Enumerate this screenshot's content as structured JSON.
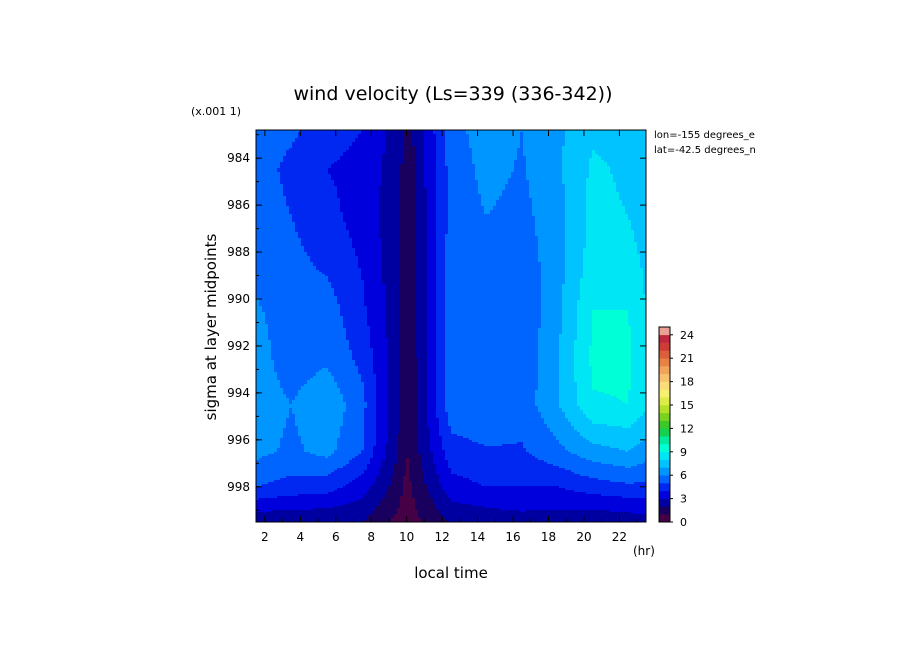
{
  "chart_data": {
    "type": "heatmap",
    "title": "wind velocity (Ls=339 (336-342))",
    "xlabel": "local time",
    "x_unit": "(hr)",
    "ylabel": "sigma at layer midpoints",
    "y_scale_note": "(x.001 1)",
    "annotations": [
      "lon=-155 degrees_e",
      "lat=-42.5 degrees_n"
    ],
    "x_ticks": [
      "2",
      "4",
      "6",
      "8",
      "10",
      "12",
      "14",
      "16",
      "18",
      "20",
      "22"
    ],
    "y_ticks": [
      "984",
      "986",
      "988",
      "990",
      "992",
      "994",
      "996",
      "998"
    ],
    "xlim": [
      1.5,
      23.5
    ],
    "ylim": [
      982.8,
      999.5
    ],
    "colorbar": {
      "ticks": [
        "0",
        "3",
        "6",
        "9",
        "12",
        "15",
        "18",
        "21",
        "24"
      ],
      "range": [
        0,
        25
      ],
      "step": 1
    },
    "x": [
      1.5,
      3.5,
      5.5,
      7.5,
      9.5,
      10.0,
      10.5,
      12.5,
      14.5,
      16.5,
      18.5,
      20.5,
      22.5,
      23.5
    ],
    "y": [
      982.8,
      984.5,
      986.5,
      988.5,
      990.5,
      992.5,
      994.5,
      996.5,
      998.0,
      998.8,
      999.5
    ],
    "values": [
      [
        5.5,
        5.2,
        4.4,
        4.0,
        2.5,
        1.5,
        2.2,
        5.6,
        6.5,
        6.0,
        6.8,
        7.8,
        7.6,
        7.2
      ],
      [
        5.5,
        4.7,
        4.0,
        3.7,
        2.4,
        1.4,
        2.1,
        5.4,
        6.3,
        5.9,
        6.8,
        8.2,
        7.8,
        7.3
      ],
      [
        5.6,
        5.0,
        4.3,
        3.6,
        2.3,
        1.3,
        2.0,
        5.4,
        6.0,
        5.7,
        6.6,
        8.3,
        8.0,
        7.4
      ],
      [
        5.8,
        5.3,
        4.8,
        3.9,
        2.3,
        1.3,
        2.0,
        5.5,
        6.0,
        5.4,
        6.6,
        8.5,
        8.5,
        7.8
      ],
      [
        6.1,
        5.6,
        5.5,
        4.2,
        2.3,
        1.3,
        2.0,
        5.5,
        6.0,
        5.2,
        6.7,
        9.0,
        9.0,
        8.0
      ],
      [
        6.4,
        5.5,
        5.8,
        4.7,
        2.3,
        1.2,
        1.9,
        5.6,
        5.9,
        5.3,
        6.9,
        9.2,
        9.2,
        8.2
      ],
      [
        6.5,
        6.0,
        6.8,
        5.3,
        2.2,
        1.2,
        1.9,
        5.6,
        5.8,
        5.4,
        6.9,
        8.9,
        9.0,
        8.2
      ],
      [
        6.3,
        5.8,
        6.3,
        5.0,
        2.0,
        1.0,
        1.7,
        4.6,
        4.9,
        4.9,
        5.7,
        6.6,
        7.0,
        6.5
      ],
      [
        5.0,
        4.6,
        4.4,
        3.5,
        1.5,
        0.7,
        1.3,
        3.6,
        4.0,
        4.0,
        4.0,
        4.5,
        4.8,
        4.7
      ],
      [
        3.5,
        3.3,
        3.2,
        2.7,
        1.1,
        0.5,
        1.0,
        2.8,
        3.1,
        3.3,
        3.3,
        3.2,
        3.4,
        3.5
      ],
      [
        2.2,
        2.1,
        2.1,
        2.0,
        0.7,
        0.3,
        0.8,
        2.1,
        2.3,
        2.4,
        2.3,
        2.3,
        2.5,
        2.5
      ]
    ]
  }
}
